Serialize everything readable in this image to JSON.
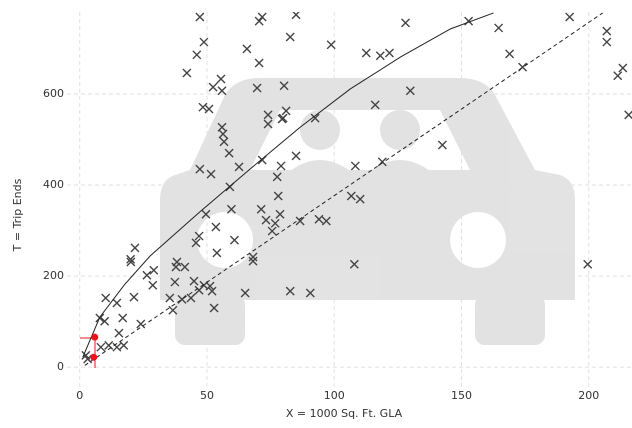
{
  "chart_data": {
    "type": "scatter",
    "x_label": "X = 1000 Sq. Ft. GLA",
    "y_label": "T = Trip Ends",
    "xlim": [
      -5,
      217
    ],
    "ylim": [
      -50,
      780
    ],
    "xticks": [
      0,
      50,
      100,
      150,
      200
    ],
    "yticks": [
      0,
      200,
      400,
      600
    ],
    "grid": true,
    "series": [
      {
        "style": "markers",
        "color": "#444444",
        "x": [
          2.4,
          3.1,
          7.9,
          9.8,
          10.2,
          8.3,
          11.4,
          14.6,
          15.4,
          14.6,
          17.3,
          16.9,
          21.3,
          20.1,
          21.7,
          20,
          24,
          26.4,
          28.7,
          29.1,
          35.4,
          37.4,
          37.8,
          36.6,
          40.2,
          38.2,
          43.7,
          44.9,
          45.7,
          46.9,
          46.9,
          48.8,
          52,
          52.8,
          53.9,
          53.5,
          51.2,
          49.6,
          51.6,
          47.2,
          48.4,
          50.8,
          55.9,
          55.5,
          52.4,
          46,
          48.8,
          47.2,
          42.1,
          56.3,
          55.9,
          56.7,
          58.7,
          59,
          59.6,
          60.8,
          62.6,
          65,
          65.7,
          68.1,
          68.1,
          70.5,
          69.7,
          70.5,
          71.7,
          71.7,
          71.3,
          73.2,
          74,
          74,
          75.6,
          76.8,
          77.6,
          78,
          78.7,
          79.1,
          79.5,
          79.9,
          80.3,
          81.1,
          82.7,
          82.7,
          85,
          85,
          86.6,
          90.6,
          94,
          96.9,
          92.5,
          98.8,
          106.7,
          108.3,
          107.9,
          110.2,
          112.6,
          116.1,
          118.1,
          118.9,
          121.7,
          128,
          129.9,
          142.5,
          152.8,
          164.6,
          168.9,
          174,
          192.5,
          199.6,
          207.1,
          207.1,
          211.4,
          213.4,
          215.7,
          41.3
        ],
        "values": [
          26,
          18,
          108,
          101,
          152,
          44,
          48,
          44,
          75,
          141,
          48,
          108,
          154,
          231,
          262,
          237,
          95,
          202,
          180,
          213,
          152,
          187,
          220,
          125,
          149,
          231,
          152,
          189,
          273,
          288,
          169,
          180,
          167,
          130,
          251,
          308,
          178,
          336,
          424,
          435,
          571,
          567,
          607,
          633,
          615,
          686,
          714,
          769,
          646,
          512,
          527,
          495,
          470,
          396,
          347,
          279,
          440,
          163,
          699,
          233,
          242,
          668,
          613,
          760,
          769,
          455,
          347,
          323,
          554,
          534,
          299,
          316,
          418,
          376,
          336,
          442,
          545,
          547,
          618,
          563,
          725,
          167,
          464,
          774,
          321,
          163,
          325,
          321,
          547,
          708,
          376,
          442,
          226,
          369,
          690,
          576,
          684,
          451,
          690,
          756,
          607,
          488,
          760,
          745,
          688,
          659,
          769,
          226,
          738,
          714,
          640,
          657,
          554,
          220
        ]
      },
      {
        "style": "line",
        "color": "#222222",
        "x": [
          1.2,
          7.9,
          17.7,
          27.6,
          47.2,
          66.9,
          86.6,
          106.3,
          126,
          145.7,
          162.6
        ],
        "values": [
          22,
          110,
          182,
          244,
          341,
          435,
          527,
          611,
          681,
          743,
          778
        ]
      },
      {
        "style": "dashed",
        "color": "#222222",
        "x": [
          2,
          205.5
        ],
        "values": [
          4,
          778
        ]
      },
      {
        "style": "points",
        "color": "#e8141b",
        "x": [
          5.9,
          5.5
        ],
        "values": [
          66,
          22
        ]
      }
    ]
  }
}
